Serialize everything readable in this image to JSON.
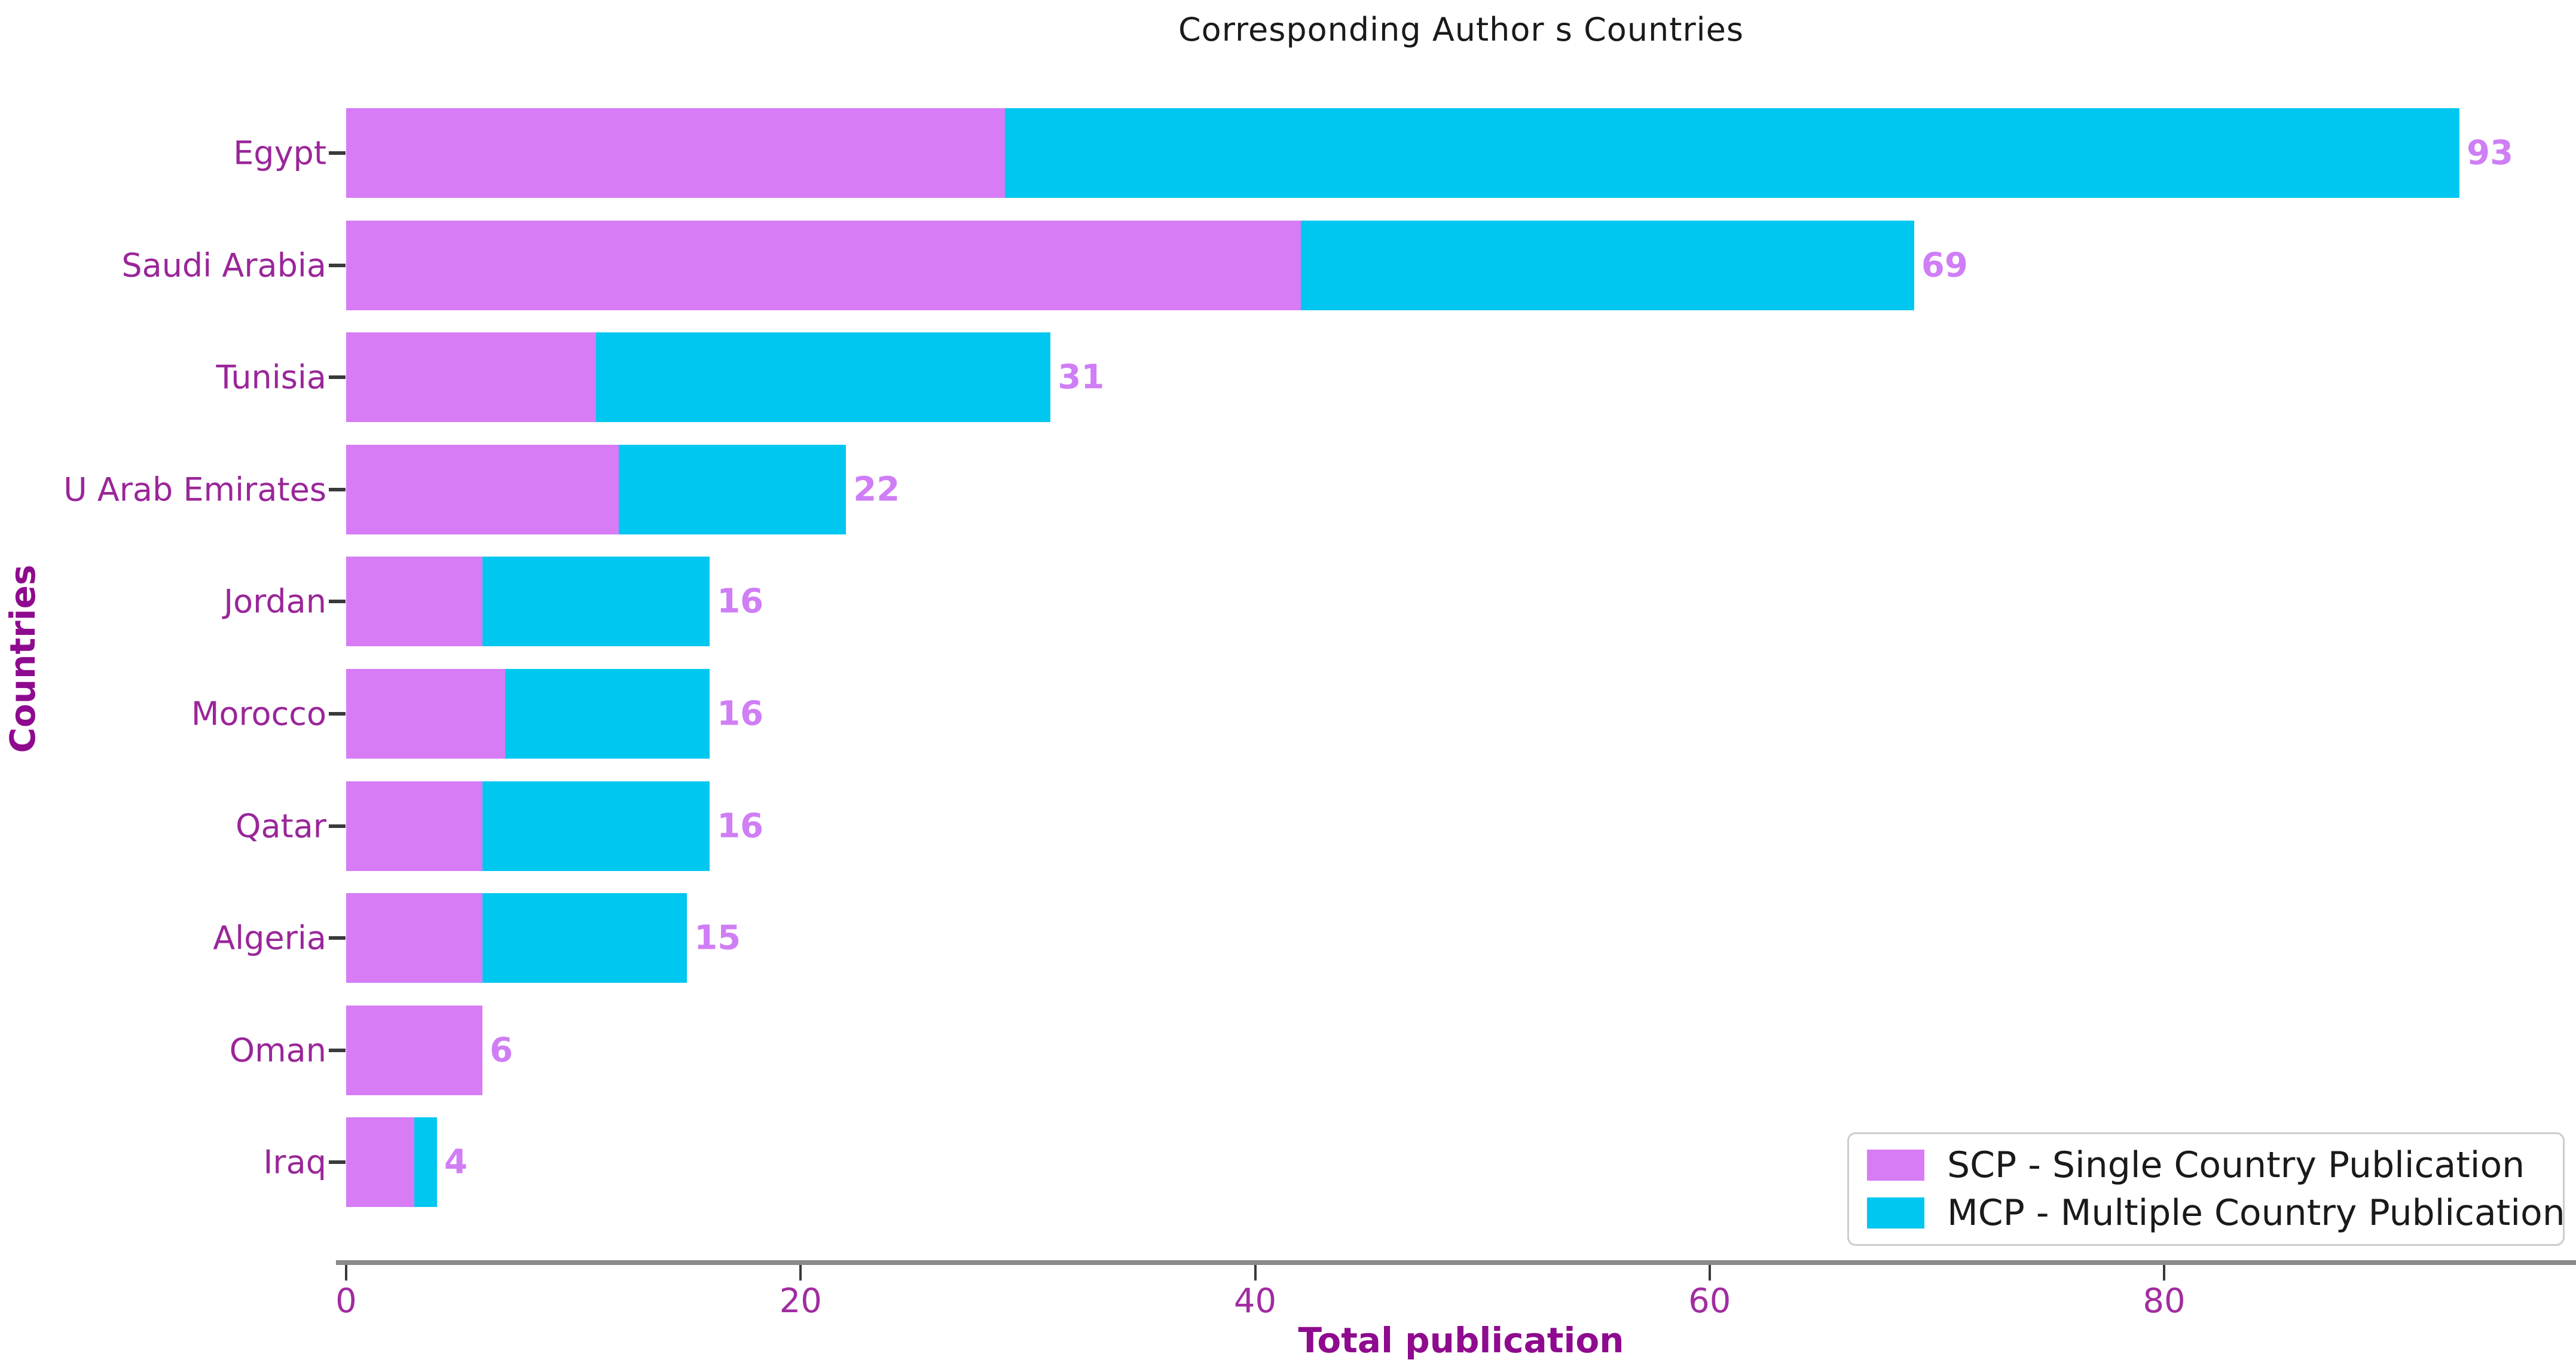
{
  "title": "Corresponding Author s Countries",
  "axes": {
    "x_label": "Total publication",
    "y_label": "Countries",
    "x_ticks": [
      0,
      20,
      40,
      60,
      80
    ]
  },
  "legend": {
    "items": [
      {
        "label": "SCP - Single Country Publication",
        "series": "SCP"
      },
      {
        "label": "MCP - Multiple Country Publication",
        "series": "MCP"
      }
    ]
  },
  "colors": {
    "scp": "#D77CF5",
    "mcp": "#00C7EF",
    "value_label": "#CF7EF5",
    "category_label": "#9A2699",
    "tick_label": "#A12CA1",
    "axis_title": "#8E0A8E",
    "title": "#1a1a1a"
  },
  "chart_data": {
    "type": "bar",
    "orientation": "horizontal",
    "stacked": true,
    "title": "Corresponding Author s Countries",
    "xlabel": "Total publication",
    "ylabel": "Countries",
    "xlim": [
      0,
      98
    ],
    "grid": false,
    "legend_position": "lower right",
    "categories": [
      "Egypt",
      "Saudi Arabia",
      "Tunisia",
      "U Arab Emirates",
      "Jordan",
      "Morocco",
      "Qatar",
      "Algeria",
      "Oman",
      "Iraq"
    ],
    "series": [
      {
        "name": "SCP - Single Country Publication",
        "values": [
          29,
          42,
          11,
          12,
          6,
          7,
          6,
          6,
          6,
          3
        ]
      },
      {
        "name": "MCP - Multiple Country Publication",
        "values": [
          64,
          27,
          20,
          10,
          10,
          9,
          10,
          9,
          0,
          1
        ]
      }
    ],
    "totals": [
      93,
      69,
      31,
      22,
      16,
      16,
      16,
      15,
      6,
      4
    ]
  }
}
